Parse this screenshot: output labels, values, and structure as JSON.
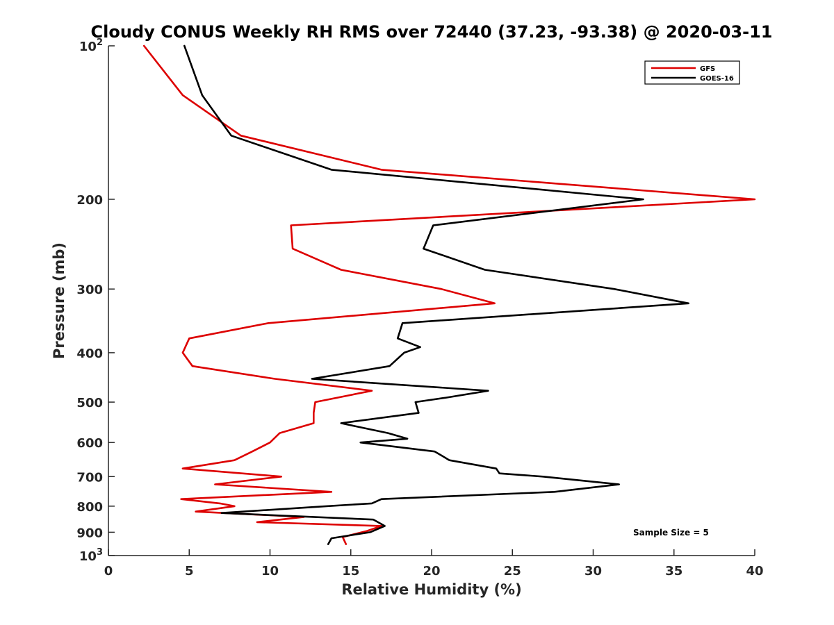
{
  "chart_data": {
    "type": "line",
    "title": "Cloudy CONUS Weekly RH RMS over 72440 (37.23, -93.38) @ 2020-03-11",
    "xlabel": "Relative Humidity (%)",
    "ylabel": "Pressure (mb)",
    "xlim": [
      0,
      40
    ],
    "ylim": [
      100,
      1000
    ],
    "y_scale": "log",
    "y_reversed": true,
    "x_ticks": [
      "0",
      "5",
      "10",
      "15",
      "20",
      "25",
      "30",
      "35",
      "40"
    ],
    "y_ticks": [
      {
        "value": 100,
        "label": "10",
        "exp": "2"
      },
      {
        "value": 200,
        "label": "200"
      },
      {
        "value": 300,
        "label": "300"
      },
      {
        "value": 400,
        "label": "400"
      },
      {
        "value": 500,
        "label": "500"
      },
      {
        "value": 600,
        "label": "600"
      },
      {
        "value": 700,
        "label": "700"
      },
      {
        "value": 800,
        "label": "800"
      },
      {
        "value": 900,
        "label": "900"
      },
      {
        "value": 1000,
        "label": "10",
        "exp": "3"
      }
    ],
    "grid": false,
    "legend_position": "top-right",
    "annotation": "Sample Size = 5",
    "series": [
      {
        "name": "GFS",
        "color": "#dd0000",
        "points": [
          [
            2.2,
            100
          ],
          [
            4.6,
            125
          ],
          [
            8.2,
            150
          ],
          [
            16.9,
            175
          ],
          [
            40.0,
            200
          ],
          [
            11.3,
            225
          ],
          [
            11.4,
            250
          ],
          [
            14.4,
            275
          ],
          [
            20.6,
            300
          ],
          [
            23.9,
            320
          ],
          [
            9.9,
            350
          ],
          [
            5.0,
            375
          ],
          [
            4.6,
            400
          ],
          [
            5.2,
            425
          ],
          [
            10.3,
            450
          ],
          [
            16.3,
            475
          ],
          [
            12.8,
            500
          ],
          [
            12.7,
            525
          ],
          [
            12.7,
            550
          ],
          [
            10.6,
            575
          ],
          [
            10.0,
            600
          ],
          [
            8.9,
            625
          ],
          [
            7.8,
            650
          ],
          [
            4.6,
            675
          ],
          [
            10.7,
            700
          ],
          [
            6.6,
            725
          ],
          [
            13.8,
            750
          ],
          [
            4.5,
            775
          ],
          [
            6.9,
            790
          ],
          [
            7.8,
            800
          ],
          [
            5.4,
            820
          ],
          [
            12.1,
            840
          ],
          [
            9.2,
            860
          ],
          [
            16.9,
            875
          ],
          [
            16.0,
            895
          ],
          [
            14.5,
            920
          ],
          [
            14.7,
            950
          ]
        ]
      },
      {
        "name": "GOES-16",
        "color": "#000000",
        "points": [
          [
            4.7,
            100
          ],
          [
            5.8,
            125
          ],
          [
            7.6,
            150
          ],
          [
            13.8,
            175
          ],
          [
            33.1,
            200
          ],
          [
            20.1,
            225
          ],
          [
            19.5,
            250
          ],
          [
            23.3,
            275
          ],
          [
            31.3,
            300
          ],
          [
            35.9,
            320
          ],
          [
            18.2,
            350
          ],
          [
            17.9,
            375
          ],
          [
            19.3,
            390
          ],
          [
            18.3,
            400
          ],
          [
            17.4,
            425
          ],
          [
            12.6,
            450
          ],
          [
            23.5,
            475
          ],
          [
            20.9,
            490
          ],
          [
            19.0,
            500
          ],
          [
            19.2,
            525
          ],
          [
            14.4,
            550
          ],
          [
            17.3,
            575
          ],
          [
            18.5,
            590
          ],
          [
            15.6,
            600
          ],
          [
            20.2,
            625
          ],
          [
            21.1,
            650
          ],
          [
            24.0,
            675
          ],
          [
            24.2,
            690
          ],
          [
            26.9,
            700
          ],
          [
            31.6,
            725
          ],
          [
            27.6,
            750
          ],
          [
            16.9,
            775
          ],
          [
            16.3,
            790
          ],
          [
            13.5,
            800
          ],
          [
            7.0,
            825
          ],
          [
            16.4,
            850
          ],
          [
            17.1,
            875
          ],
          [
            16.2,
            900
          ],
          [
            13.8,
            925
          ],
          [
            13.6,
            950
          ]
        ]
      }
    ]
  }
}
